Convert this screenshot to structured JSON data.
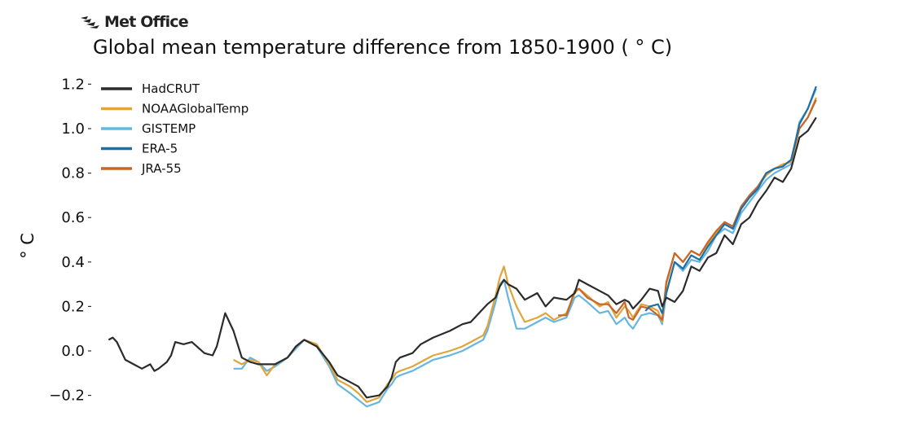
{
  "brand": {
    "name": "Met Office",
    "icon": "met-office-logo-icon"
  },
  "chart_data": {
    "type": "line",
    "title": "Global mean temperature difference from 1850-1900 ( ° C)",
    "ylabel": "° C",
    "xlabel": "",
    "ylim": [
      -0.25,
      1.25
    ],
    "xlim": [
      1847,
      2022
    ],
    "yticks": [
      "−0.2",
      "0.0",
      "0.2",
      "0.4",
      "0.6",
      "0.8",
      "1.0",
      "1.2"
    ],
    "ytick_values": [
      -0.2,
      0.0,
      0.2,
      0.4,
      0.6,
      0.8,
      1.0,
      1.2
    ],
    "grid": false,
    "legend_position": "top-left",
    "series": [
      {
        "name": "HadCRUT",
        "color": "#2b2b2b",
        "x": [
          1850,
          1851,
          1852,
          1854,
          1856,
          1858,
          1860,
          1861,
          1862,
          1864,
          1865,
          1866,
          1868,
          1870,
          1873,
          1875,
          1876,
          1878,
          1880,
          1882,
          1884,
          1886,
          1890,
          1893,
          1895,
          1897,
          1900,
          1903,
          1905,
          1908,
          1910,
          1912,
          1915,
          1917,
          1918,
          1919,
          1920,
          1923,
          1925,
          1928,
          1932,
          1935,
          1937,
          1940,
          1941,
          1943,
          1944,
          1945,
          1946,
          1948,
          1950,
          1953,
          1955,
          1957,
          1960,
          1962,
          1963,
          1965,
          1968,
          1970,
          1972,
          1974,
          1975,
          1976,
          1978,
          1980,
          1982,
          1983,
          1984,
          1986,
          1988,
          1990,
          1992,
          1994,
          1996,
          1998,
          2000,
          2002,
          2004,
          2006,
          2008,
          2010,
          2012,
          2014,
          2016,
          2018,
          2020
        ],
        "values": [
          0.05,
          0.06,
          0.04,
          -0.04,
          -0.06,
          -0.08,
          -0.06,
          -0.09,
          -0.08,
          -0.05,
          -0.02,
          0.04,
          0.03,
          0.04,
          -0.01,
          -0.02,
          0.02,
          0.17,
          0.09,
          -0.03,
          -0.05,
          -0.06,
          -0.06,
          -0.03,
          0.02,
          0.05,
          0.02,
          -0.05,
          -0.11,
          -0.14,
          -0.16,
          -0.21,
          -0.2,
          -0.16,
          -0.12,
          -0.05,
          -0.03,
          -0.01,
          0.03,
          0.06,
          0.09,
          0.12,
          0.13,
          0.19,
          0.21,
          0.24,
          0.29,
          0.32,
          0.3,
          0.28,
          0.23,
          0.26,
          0.2,
          0.24,
          0.23,
          0.26,
          0.32,
          0.3,
          0.27,
          0.25,
          0.21,
          0.23,
          0.22,
          0.19,
          0.23,
          0.28,
          0.27,
          0.2,
          0.24,
          0.22,
          0.27,
          0.38,
          0.36,
          0.42,
          0.44,
          0.52,
          0.48,
          0.57,
          0.6,
          0.67,
          0.72,
          0.78,
          0.76,
          0.82,
          0.96,
          0.99,
          1.05
        ]
      },
      {
        "name": "NOAAGlobalTemp",
        "color": "#e0a53a",
        "x": [
          1880,
          1882,
          1884,
          1886,
          1888,
          1890,
          1893,
          1895,
          1897,
          1900,
          1903,
          1905,
          1908,
          1910,
          1912,
          1915,
          1917,
          1918,
          1919,
          1920,
          1923,
          1925,
          1928,
          1932,
          1935,
          1937,
          1940,
          1941,
          1943,
          1944,
          1945,
          1946,
          1948,
          1950,
          1953,
          1955,
          1957,
          1960,
          1962,
          1963,
          1965,
          1968,
          1970,
          1972,
          1974,
          1975,
          1976,
          1978,
          1980,
          1982,
          1983,
          1984,
          1986,
          1988,
          1990,
          1992,
          1994,
          1996,
          1998,
          2000,
          2002,
          2004,
          2006,
          2008,
          2010,
          2012,
          2014,
          2016,
          2018,
          2020
        ],
        "values": [
          -0.04,
          -0.06,
          -0.04,
          -0.05,
          -0.11,
          -0.06,
          -0.03,
          0.02,
          0.05,
          0.03,
          -0.06,
          -0.13,
          -0.16,
          -0.19,
          -0.23,
          -0.21,
          -0.15,
          -0.13,
          -0.1,
          -0.09,
          -0.07,
          -0.05,
          -0.02,
          0.0,
          0.02,
          0.04,
          0.07,
          0.11,
          0.25,
          0.33,
          0.38,
          0.3,
          0.2,
          0.13,
          0.15,
          0.17,
          0.14,
          0.17,
          0.26,
          0.28,
          0.25,
          0.2,
          0.22,
          0.15,
          0.2,
          0.18,
          0.15,
          0.21,
          0.2,
          0.18,
          0.13,
          0.3,
          0.44,
          0.4,
          0.45,
          0.43,
          0.48,
          0.53,
          0.58,
          0.56,
          0.64,
          0.7,
          0.74,
          0.79,
          0.82,
          0.84,
          0.85,
          1.0,
          1.05,
          1.14
        ]
      },
      {
        "name": "GISTEMP",
        "color": "#67b6e2",
        "x": [
          1880,
          1882,
          1884,
          1886,
          1888,
          1890,
          1893,
          1895,
          1897,
          1900,
          1903,
          1905,
          1908,
          1910,
          1912,
          1915,
          1917,
          1918,
          1919,
          1920,
          1923,
          1925,
          1928,
          1932,
          1935,
          1937,
          1940,
          1941,
          1943,
          1944,
          1945,
          1946,
          1948,
          1950,
          1953,
          1955,
          1957,
          1960,
          1962,
          1963,
          1965,
          1968,
          1970,
          1972,
          1974,
          1975,
          1976,
          1978,
          1980,
          1982,
          1983,
          1984,
          1986,
          1988,
          1990,
          1992,
          1994,
          1996,
          1998,
          2000,
          2002,
          2004,
          2006,
          2008,
          2010,
          2012,
          2014,
          2016,
          2018,
          2020
        ],
        "values": [
          -0.08,
          -0.08,
          -0.03,
          -0.05,
          -0.09,
          -0.07,
          -0.03,
          0.01,
          0.05,
          0.02,
          -0.07,
          -0.15,
          -0.19,
          -0.22,
          -0.25,
          -0.23,
          -0.17,
          -0.15,
          -0.12,
          -0.11,
          -0.09,
          -0.07,
          -0.04,
          -0.02,
          0.0,
          0.02,
          0.05,
          0.09,
          0.22,
          0.3,
          0.32,
          0.24,
          0.1,
          0.1,
          0.13,
          0.15,
          0.13,
          0.15,
          0.24,
          0.25,
          0.22,
          0.17,
          0.18,
          0.12,
          0.15,
          0.12,
          0.1,
          0.16,
          0.17,
          0.16,
          0.12,
          0.26,
          0.4,
          0.36,
          0.41,
          0.4,
          0.45,
          0.52,
          0.55,
          0.53,
          0.62,
          0.67,
          0.72,
          0.77,
          0.8,
          0.82,
          0.84,
          1.03,
          1.09,
          1.18
        ]
      },
      {
        "name": "ERA-5",
        "color": "#1f6fa3",
        "x": [
          1979,
          1980,
          1982,
          1983,
          1984,
          1986,
          1988,
          1990,
          1992,
          1994,
          1996,
          1998,
          2000,
          2002,
          2004,
          2006,
          2008,
          2010,
          2012,
          2014,
          2016,
          2018,
          2020
        ],
        "values": [
          0.18,
          0.2,
          0.21,
          0.17,
          0.26,
          0.4,
          0.37,
          0.43,
          0.41,
          0.47,
          0.52,
          0.57,
          0.55,
          0.64,
          0.69,
          0.73,
          0.8,
          0.82,
          0.83,
          0.86,
          1.02,
          1.09,
          1.19
        ]
      },
      {
        "name": "JRA-55",
        "color": "#c8662a",
        "x": [
          1958,
          1960,
          1962,
          1963,
          1965,
          1968,
          1970,
          1972,
          1974,
          1975,
          1976,
          1978,
          1980,
          1982,
          1983,
          1984,
          1986,
          1988,
          1990,
          1992,
          1994,
          1996,
          1998,
          2000,
          2002,
          2004,
          2006,
          2008,
          2010,
          2012,
          2014,
          2016,
          2018,
          2020
        ],
        "values": [
          0.16,
          0.16,
          0.27,
          0.28,
          0.24,
          0.21,
          0.21,
          0.17,
          0.22,
          0.15,
          0.14,
          0.2,
          0.19,
          0.16,
          0.14,
          0.31,
          0.44,
          0.4,
          0.45,
          0.43,
          0.49,
          0.54,
          0.58,
          0.56,
          0.65,
          0.7,
          0.74,
          0.8,
          0.82,
          0.83,
          0.86,
          1.0,
          1.05,
          1.13
        ]
      }
    ]
  }
}
